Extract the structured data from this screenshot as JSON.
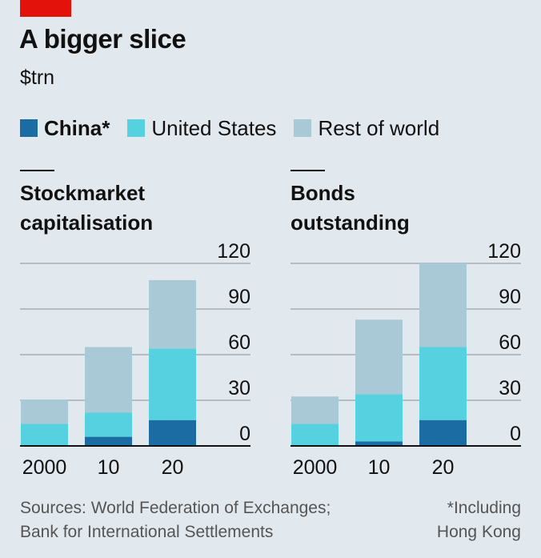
{
  "header": {
    "title": "A bigger slice",
    "subtitle": "$trn"
  },
  "legend": [
    {
      "label": "China*",
      "color": "#1a6ca3"
    },
    {
      "label": "United States",
      "color": "#55d1df"
    },
    {
      "label": "Rest of world",
      "color": "#aac9d7"
    }
  ],
  "colors": {
    "china": "#1a6ca3",
    "us": "#55d1df",
    "rest": "#aac9d7",
    "grid": "#b5bcc3",
    "axis": "#111111"
  },
  "chart_data": [
    {
      "type": "bar",
      "stacked": true,
      "title": "Stockmarket\ncapitalisation",
      "categories": [
        "2000",
        "10",
        "20"
      ],
      "series": [
        {
          "name": "China*",
          "values": [
            0.5,
            6,
            17
          ]
        },
        {
          "name": "United States",
          "values": [
            14,
            16,
            47
          ]
        },
        {
          "name": "Rest of world",
          "values": [
            16,
            43,
            45
          ]
        }
      ],
      "ylim": [
        0,
        120
      ],
      "yticks": [
        "0",
        "30",
        "60",
        "90",
        "120"
      ],
      "grid": true
    },
    {
      "type": "bar",
      "stacked": true,
      "title": "Bonds\noutstanding",
      "categories": [
        "2000",
        "10",
        "20"
      ],
      "series": [
        {
          "name": "China*",
          "values": [
            0.5,
            3,
            17
          ]
        },
        {
          "name": "United States",
          "values": [
            14,
            31,
            48
          ]
        },
        {
          "name": "Rest of world",
          "values": [
            18,
            49,
            55
          ]
        }
      ],
      "ylim": [
        0,
        120
      ],
      "yticks": [
        "0",
        "30",
        "60",
        "90",
        "120"
      ],
      "grid": true
    }
  ],
  "footer": {
    "sources": "Sources: World Federation of Exchanges;\nBank for International Settlements",
    "note": "*Including\nHong Kong"
  }
}
